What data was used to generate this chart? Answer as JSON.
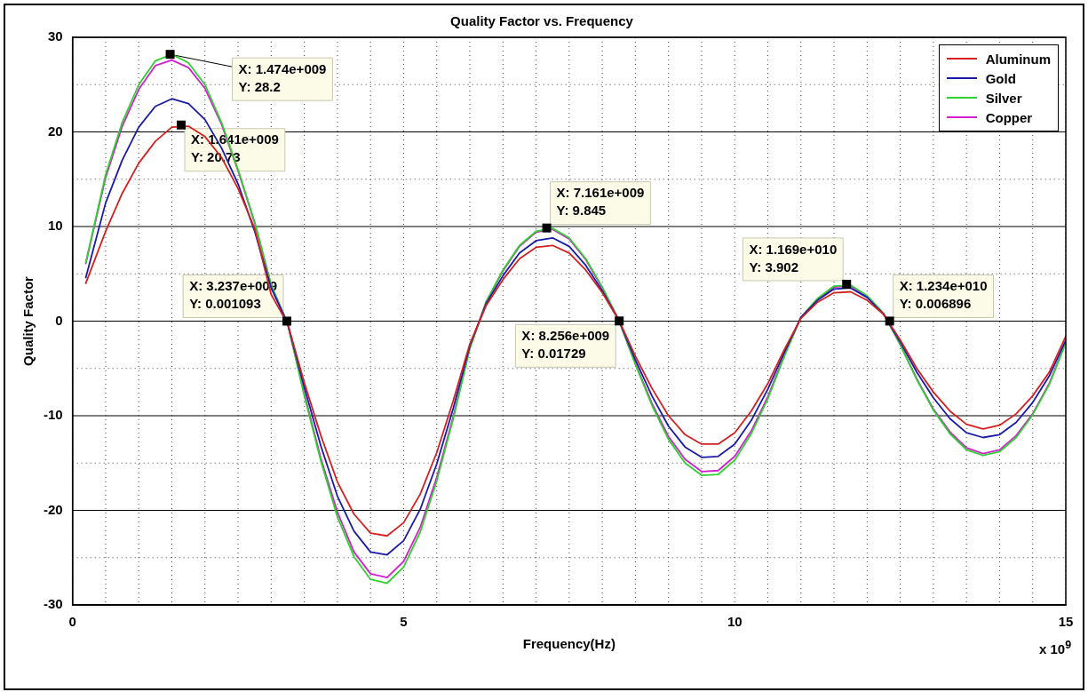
{
  "chart_data": {
    "type": "line",
    "title": "Quality Factor vs. Frequency",
    "xlabel": "Frequency(Hz)",
    "ylabel": "Quality Factor",
    "x": [
      0.2,
      0.5,
      0.75,
      1,
      1.25,
      1.5,
      1.75,
      2,
      2.25,
      2.5,
      2.75,
      3,
      3.25,
      3.5,
      3.75,
      4,
      4.25,
      4.5,
      4.75,
      5,
      5.25,
      5.5,
      5.75,
      6,
      6.25,
      6.5,
      6.75,
      7,
      7.25,
      7.5,
      7.75,
      8,
      8.25,
      8.5,
      8.75,
      9,
      9.25,
      9.5,
      9.75,
      10,
      10.25,
      10.5,
      10.75,
      11,
      11.25,
      11.5,
      11.75,
      12,
      12.25,
      12.5,
      12.75,
      13,
      13.25,
      13.5,
      13.75,
      14,
      14.25,
      14.5,
      14.75,
      15
    ],
    "series": [
      {
        "name": "Aluminum",
        "color": "#d42020",
        "values": [
          4.0,
          9.5,
          13.5,
          16.7,
          19,
          20.5,
          20.6,
          19.5,
          17.3,
          14,
          9.8,
          2.8,
          -0.3,
          -6.5,
          -12.1,
          -17.0,
          -20.4,
          -22.4,
          -22.7,
          -21.3,
          -18.3,
          -13.9,
          -8.4,
          -2.4,
          1.7,
          4.4,
          6.6,
          7.8,
          8.0,
          7.2,
          5.4,
          3.0,
          0.1,
          -3.7,
          -7.1,
          -10.0,
          -12.0,
          -13.0,
          -13.0,
          -11.8,
          -9.5,
          -6.6,
          -3.0,
          0.3,
          2.0,
          3.0,
          3.1,
          2.2,
          0.7,
          -2.0,
          -5.0,
          -7.5,
          -9.5,
          -10.9,
          -11.4,
          -11.0,
          -9.8,
          -7.9,
          -5.4,
          -1.6
        ]
      },
      {
        "name": "Gold",
        "color": "#1a1aa8",
        "values": [
          4.6,
          12.5,
          17,
          20.5,
          22.7,
          23.5,
          23,
          21.3,
          18.3,
          14.5,
          9.5,
          3.5,
          -0.3,
          -7.0,
          -13.2,
          -18.5,
          -22.2,
          -24.4,
          -24.7,
          -23.2,
          -19.9,
          -15.1,
          -9.2,
          -2.6,
          1.9,
          4.8,
          7.2,
          8.5,
          8.8,
          7.9,
          5.9,
          3.2,
          0.1,
          -4.1,
          -7.9,
          -11.1,
          -13.3,
          -14.4,
          -14.3,
          -13.0,
          -10.5,
          -7.2,
          -3.3,
          0.4,
          2.2,
          3.4,
          3.5,
          2.5,
          0.7,
          -2.2,
          -5.4,
          -8.1,
          -10.3,
          -11.8,
          -12.3,
          -12.0,
          -10.7,
          -8.6,
          -5.8,
          -2.0
        ]
      },
      {
        "name": "Silver",
        "color": "#30d030",
        "values": [
          6.2,
          15.5,
          21,
          25,
          27.5,
          28.2,
          27.3,
          25,
          21,
          16,
          10.5,
          3.8,
          -0.3,
          -7.9,
          -14.8,
          -20.7,
          -24.9,
          -27.3,
          -27.7,
          -26.0,
          -22.3,
          -16.9,
          -10.3,
          -2.9,
          2.1,
          5.4,
          8.0,
          9.5,
          9.8,
          8.8,
          6.6,
          3.6,
          0.1,
          -4.6,
          -8.9,
          -12.5,
          -15.0,
          -16.3,
          -16.2,
          -14.7,
          -11.9,
          -8.2,
          -3.7,
          0.4,
          2.4,
          3.7,
          3.8,
          2.7,
          0.8,
          -2.5,
          -6.2,
          -9.4,
          -11.9,
          -13.6,
          -14.2,
          -13.8,
          -12.3,
          -9.9,
          -6.7,
          -2.3
        ]
      },
      {
        "name": "Copper",
        "color": "#d020d0",
        "values": [
          6.1,
          15.2,
          20.6,
          24.5,
          27,
          27.6,
          26.8,
          24.6,
          20.8,
          15.9,
          10.4,
          3.8,
          -0.3,
          -7.7,
          -14.5,
          -20.2,
          -24.4,
          -26.7,
          -27.1,
          -25.4,
          -21.8,
          -16.5,
          -10.1,
          -2.8,
          2.1,
          5.3,
          7.9,
          9.4,
          9.7,
          8.7,
          6.5,
          3.5,
          0.1,
          -4.5,
          -8.7,
          -12.2,
          -14.6,
          -15.9,
          -15.8,
          -14.3,
          -11.6,
          -8.0,
          -3.6,
          0.4,
          2.3,
          3.6,
          3.7,
          2.6,
          0.8,
          -2.5,
          -6.1,
          -9.3,
          -11.7,
          -13.4,
          -14.0,
          -13.6,
          -12.1,
          -9.8,
          -6.6,
          -2.2
        ]
      }
    ],
    "xlim": [
      0,
      15
    ],
    "xticks": [
      0,
      {
        "value": 0.5,
        "label": null
      },
      {
        "value": 1,
        "label": null
      },
      {
        "value": 1.5,
        "label": null
      },
      {
        "value": 2,
        "label": null
      },
      {
        "value": 2.5,
        "label": null
      },
      {
        "value": 3,
        "label": null
      },
      {
        "value": 3.5,
        "label": null
      },
      {
        "value": 4,
        "label": null
      },
      {
        "value": 4.5,
        "label": null
      },
      5,
      {
        "value": 5.5,
        "label": null
      },
      {
        "value": 6,
        "label": null
      },
      {
        "value": 6.5,
        "label": null
      },
      {
        "value": 7,
        "label": null
      },
      {
        "value": 7.5,
        "label": null
      },
      {
        "value": 8,
        "label": null
      },
      {
        "value": 8.5,
        "label": null
      },
      {
        "value": 9,
        "label": null
      },
      {
        "value": 9.5,
        "label": null
      },
      10,
      {
        "value": 10.5,
        "label": null
      },
      {
        "value": 11,
        "label": null
      },
      {
        "value": 11.5,
        "label": null
      },
      {
        "value": 12,
        "label": null
      },
      {
        "value": 12.5,
        "label": null
      },
      {
        "value": 13,
        "label": null
      },
      {
        "value": 13.5,
        "label": null
      },
      {
        "value": 14,
        "label": null
      },
      {
        "value": 14.5,
        "label": null
      },
      15
    ],
    "ylim": [
      -30,
      30
    ],
    "yticks": [
      -30,
      {
        "value": -25,
        "label": null
      },
      -20,
      {
        "value": -15,
        "label": null
      },
      -10,
      {
        "value": -5,
        "label": null
      },
      0,
      {
        "value": 5,
        "label": null
      },
      10,
      {
        "value": 15,
        "label": null
      },
      20,
      {
        "value": 25,
        "label": null
      },
      30
    ],
    "grid": true,
    "legend": "top right",
    "marker": "none",
    "line_style": "solid",
    "annotations": [
      {
        "text": "X: 1.474e+009\nY: 28.2",
        "x": 1.474,
        "y": 28.2
      },
      {
        "text": "X: 1.641e+009\nY: 20.73",
        "x": 1.641,
        "y": 20.73
      },
      {
        "text": "X: 3.237e+009\nY: 0.001093",
        "x": 3.237,
        "y": 0.001093
      },
      {
        "text": "X: 7.161e+009\nY: 9.845",
        "x": 7.161,
        "y": 9.845
      },
      {
        "text": "X: 8.256e+009\nY: 0.01729",
        "x": 8.256,
        "y": 0.01729
      },
      {
        "text": "X: 1.169e+010\nY: 3.902",
        "x": 11.69,
        "y": 3.902
      },
      {
        "text": "X: 1.234e+010\nY: 0.006896",
        "x": 12.34,
        "y": 0.006896
      },
      "x 10$^{9}$"
    ]
  }
}
